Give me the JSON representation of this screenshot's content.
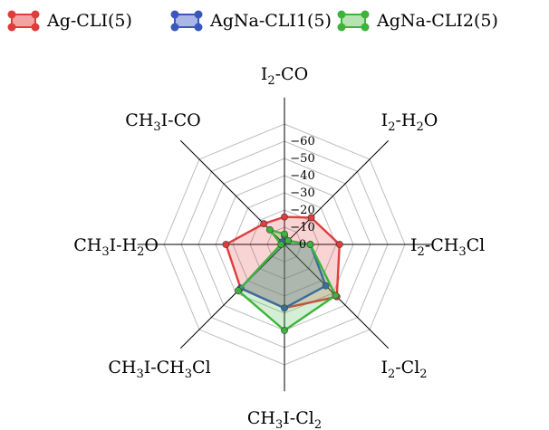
{
  "chart_data": {
    "type": "radar",
    "categories": [
      "I2-CO",
      "I2-H2O",
      "I2-CH3Cl",
      "I2-Cl2",
      "CH3I-Cl2",
      "CH3I-CH3Cl",
      "CH3I-H2O",
      "CH3I-CO"
    ],
    "category_labels": [
      {
        "base": "I",
        "sub": "2",
        "rest": "-CO"
      },
      {
        "base": "I",
        "sub": "2",
        "rest": "-H",
        "sub2": "2",
        "rest2": "O"
      },
      {
        "base": "I",
        "sub": "2",
        "rest": "-CH",
        "sub2": "3",
        "rest2": "Cl"
      },
      {
        "base": "I",
        "sub": "2",
        "rest": "-Cl",
        "sub2": "2",
        "rest2": ""
      },
      {
        "base": "CH",
        "sub": "3",
        "rest": "I-Cl",
        "sub2": "2",
        "rest2": ""
      },
      {
        "base": "CH",
        "sub": "3",
        "rest": "I-CH",
        "sub2": "3",
        "rest2": "Cl"
      },
      {
        "base": "CH",
        "sub": "3",
        "rest": "I-H",
        "sub2": "2",
        "rest2": "O"
      },
      {
        "base": "CH",
        "sub": "3",
        "rest": "I-CO",
        "sub2": "",
        "rest2": ""
      }
    ],
    "radial_range": [
      0,
      -70
    ],
    "radial_ticks": [
      0,
      -10,
      -20,
      -30,
      -40,
      -50,
      -60
    ],
    "tick_labels": [
      "0",
      "−10",
      "−20",
      "−30",
      "−40",
      "−50",
      "−60"
    ],
    "grid": true,
    "legend_position": "top",
    "series": [
      {
        "name": "Ag-CLI(5)",
        "color": "#e03c3c",
        "fill": "#f4a3a3",
        "values": [
          -16,
          -22,
          -32,
          -43,
          -37,
          -36,
          -34,
          -17
        ]
      },
      {
        "name": "AgNa-CLI1(5)",
        "color": "#3a58b8",
        "fill": "#a9b6e6",
        "values": [
          -5,
          -3,
          -15,
          -34,
          -37,
          -36,
          -2,
          -2
        ]
      },
      {
        "name": "AgNa-CLI2(5)",
        "color": "#3cb43c",
        "fill": "#b6e3b0",
        "values": [
          -6,
          -3,
          -15,
          -42,
          -50,
          -38,
          -2,
          -12
        ]
      }
    ]
  }
}
